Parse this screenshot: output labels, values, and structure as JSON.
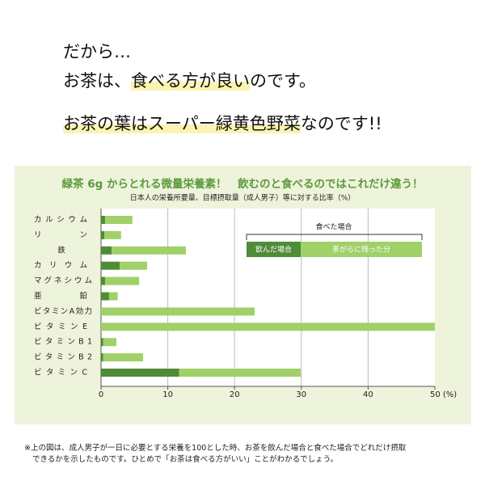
{
  "header": {
    "line1": "だから…",
    "line2": [
      "お茶は、",
      "食べる方が良い",
      "のです。"
    ],
    "line3": [
      "お茶の葉はスーパー緑黄色野菜",
      "なのです!!"
    ]
  },
  "chart_data": {
    "type": "bar",
    "orientation": "horizontal",
    "stacked": true,
    "title": "緑茶 6g からとれる微量栄養素！　飲むのと食べるのではこれだけ違う！",
    "subtitle": "日本人の栄養所要量、目標摂取量（成人男子）等に対する比率（%）",
    "categories": [
      "カルシウム",
      "リン",
      "鉄",
      "カリウム",
      "マグネシウム",
      "亜鉛",
      "ビタミンA効力",
      "ビタミンE",
      "ビタミンB1",
      "ビタミンB2",
      "ビタミンC"
    ],
    "series": [
      {
        "name": "飲んだ場合",
        "color": "#4e8c38",
        "values": [
          0.6,
          0.5,
          1.6,
          2.8,
          0.6,
          1.2,
          0,
          0,
          0.3,
          0.3,
          11.7
        ]
      },
      {
        "name": "茶がらに残った分",
        "color": "#9fd168",
        "values": [
          4.1,
          2.5,
          11.1,
          4.1,
          5.1,
          1.3,
          23.0,
          50,
          2.0,
          6.0,
          18.2
        ]
      }
    ],
    "legend_title": "食べた場合",
    "xlim": [
      0,
      50
    ],
    "xticks": [
      0,
      10,
      20,
      30,
      40,
      {
        "value": 50,
        "label": "50 (%)"
      }
    ],
    "grid": true
  },
  "footnote": [
    "※上の図は、成人男子が一日に必要とする栄養を100とした時、お茶を飲んだ場合と食べた場合でどれだけ摂取",
    "できるかを示したものです。ひとめで「お茶は食べる方がいい」ことがわかるでしょう。"
  ]
}
